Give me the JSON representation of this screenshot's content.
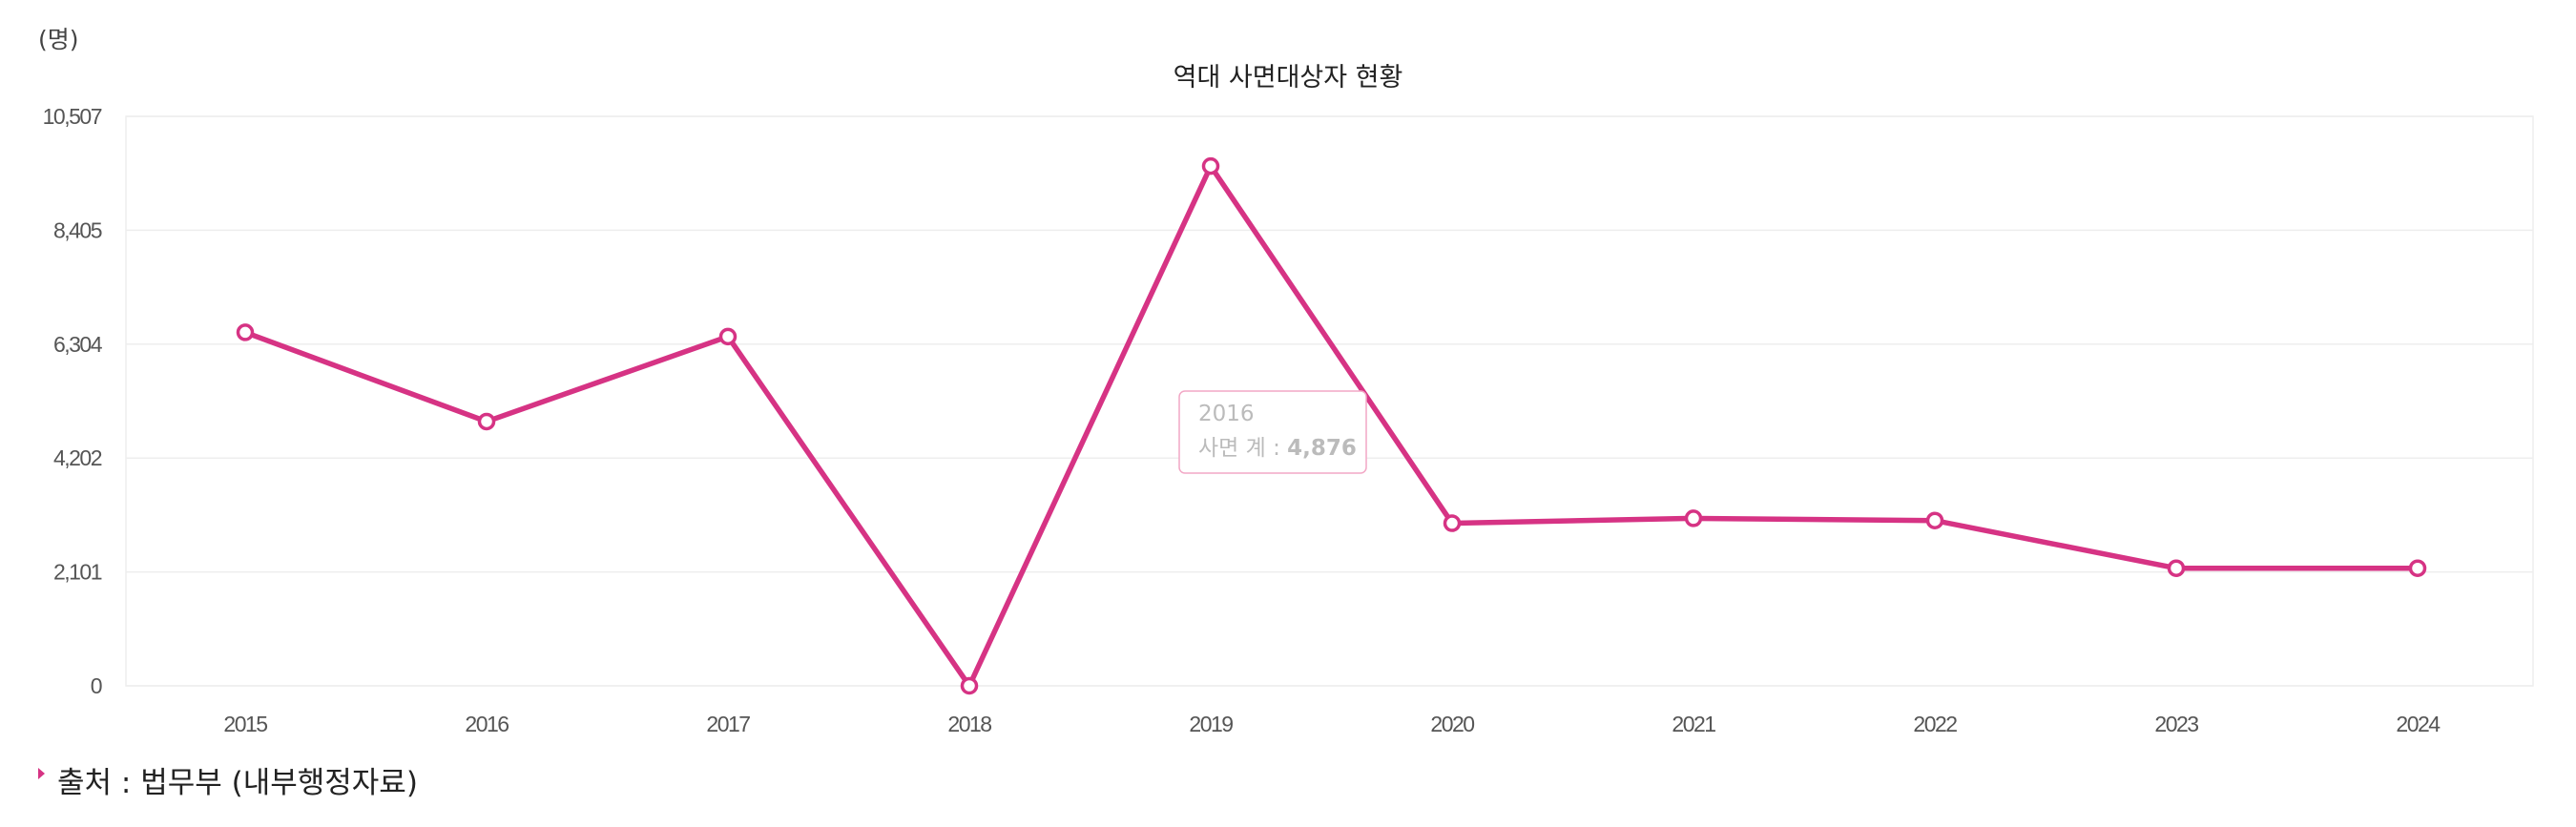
{
  "unit_label": "(명)",
  "source_text": "출처 : 법무부 (내부행정자료)",
  "tooltip": {
    "year": "2016",
    "label": "사면 계 : ",
    "value": "4,876"
  },
  "colors": {
    "line": "#d63384",
    "grid": "#eeeeee",
    "axis_text": "#555555"
  },
  "chart_data": {
    "type": "line",
    "title": "역대 사면대상자 현황",
    "xlabel": "",
    "ylabel": "",
    "categories": [
      "2015",
      "2016",
      "2017",
      "2018",
      "2019",
      "2020",
      "2021",
      "2022",
      "2023",
      "2024"
    ],
    "y_ticks": [
      "0",
      "2,101",
      "4,202",
      "6,304",
      "8,405",
      "10,507"
    ],
    "ylim": [
      0,
      10507
    ],
    "grid": true,
    "legend": "none",
    "series": [
      {
        "values": [
          6522,
          4876,
          6444,
          0,
          9590,
          3000,
          3090,
          3050,
          2170,
          2170
        ]
      }
    ]
  }
}
